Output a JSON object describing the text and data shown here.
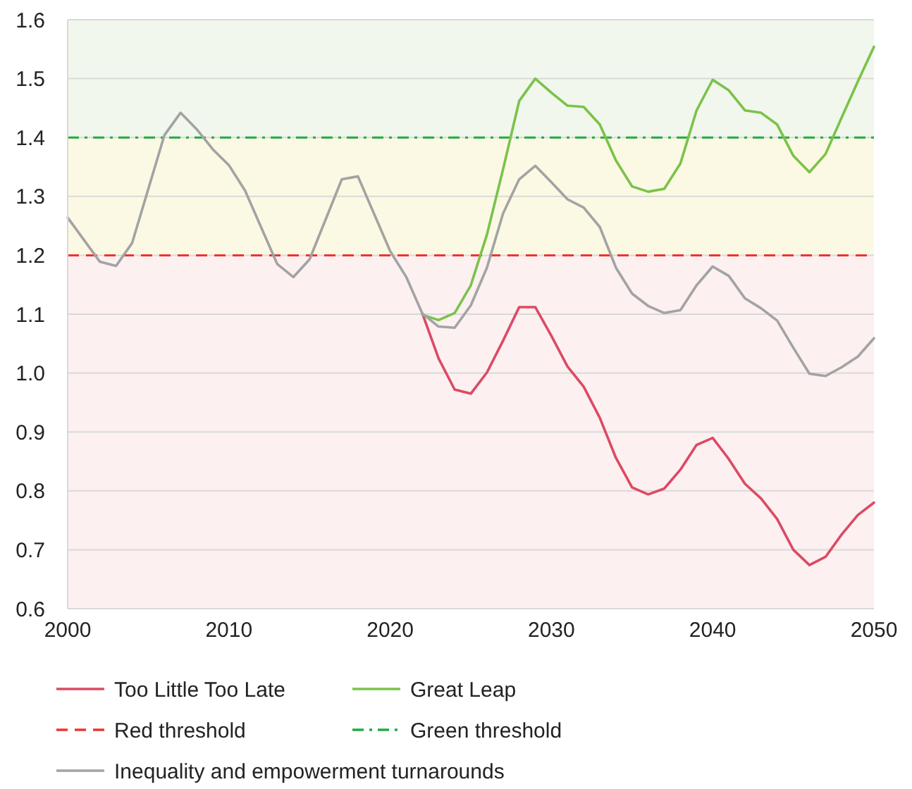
{
  "chart_data": {
    "type": "line",
    "xlim": [
      2000,
      2050
    ],
    "xticks": [
      2000,
      2010,
      2020,
      2030,
      2040,
      2050
    ],
    "ylim": [
      0.6,
      1.6
    ],
    "yticks": [
      0.6,
      0.7,
      0.8,
      0.9,
      {
        "value": 1,
        "label": "1.0"
      },
      1.1,
      1.2,
      1.3,
      1.4,
      1.5,
      1.6
    ],
    "grid": "y",
    "legend": "bottom",
    "line_style": "solid",
    "marker": "none",
    "series": [
      {
        "name": "Too Little Too Late",
        "color": "#dc4a64",
        "x": [
          2022,
          2023,
          2024,
          2025,
          2026,
          2027,
          2028,
          2029,
          2030,
          2031,
          2032,
          2033,
          2034,
          2035,
          2036,
          2037,
          2038,
          2039,
          2040,
          2041,
          2042,
          2043,
          2044,
          2045,
          2046,
          2047,
          2048,
          2049,
          2050
        ],
        "values": [
          1.101,
          1.025,
          0.972,
          0.965,
          1.001,
          1.055,
          1.112,
          1.112,
          1.063,
          1.011,
          0.977,
          0.924,
          0.856,
          0.806,
          0.794,
          0.804,
          0.836,
          0.878,
          0.89,
          0.854,
          0.812,
          0.787,
          0.752,
          0.7,
          0.674,
          0.688,
          0.726,
          0.759,
          0.78
        ]
      },
      {
        "name": "Great Leap",
        "color": "#7bc24a",
        "x": [
          2022,
          2023,
          2024,
          2025,
          2026,
          2027,
          2028,
          2029,
          2030,
          2031,
          2032,
          2033,
          2034,
          2035,
          2036,
          2037,
          2038,
          2039,
          2040,
          2041,
          2042,
          2043,
          2044,
          2045,
          2046,
          2047,
          2048,
          2049,
          2050
        ],
        "values": [
          1.099,
          1.09,
          1.102,
          1.149,
          1.235,
          1.346,
          1.462,
          1.5,
          1.476,
          1.454,
          1.452,
          1.422,
          1.361,
          1.317,
          1.308,
          1.313,
          1.356,
          1.446,
          1.498,
          1.48,
          1.446,
          1.442,
          1.422,
          1.369,
          1.341,
          1.372,
          1.434,
          1.495,
          1.554
        ]
      },
      {
        "name": "Inequality and empowerment turnarounds",
        "color": "#a3a3a3",
        "x": [
          2000,
          2002,
          2003,
          2004,
          2006,
          2007,
          2008,
          2009,
          2010,
          2011,
          2013,
          2014,
          2015,
          2017,
          2018,
          2020,
          2021,
          2022,
          2023,
          2024,
          2025,
          2026,
          2027,
          2028,
          2029,
          2030,
          2031,
          2032,
          2033,
          2034,
          2035,
          2036,
          2037,
          2038,
          2039,
          2040,
          2041,
          2042,
          2043,
          2044,
          2045,
          2046,
          2047,
          2048,
          2049,
          2050
        ],
        "values": [
          1.264,
          1.189,
          1.182,
          1.221,
          1.404,
          1.442,
          1.414,
          1.38,
          1.353,
          1.31,
          1.185,
          1.163,
          1.193,
          1.329,
          1.334,
          1.207,
          1.163,
          1.101,
          1.079,
          1.077,
          1.115,
          1.179,
          1.271,
          1.329,
          1.352,
          1.324,
          1.295,
          1.281,
          1.248,
          1.179,
          1.135,
          1.114,
          1.102,
          1.107,
          1.149,
          1.181,
          1.165,
          1.127,
          1.11,
          1.089,
          1.043,
          0.999,
          0.995,
          1.01,
          1.028,
          1.059
        ]
      }
    ],
    "ref_lines": [
      {
        "axis": "y",
        "value": 1.2,
        "label": "Red threshold",
        "color": "#ee3333",
        "line_style": "dashed"
      },
      {
        "axis": "y",
        "value": 1.4,
        "label": "Green threshold",
        "color": "#22aa44",
        "line_style": "dashdot"
      }
    ],
    "bands": [
      {
        "axis": "y",
        "from": 0.6,
        "to": 1.2,
        "color": "#fcf0f0"
      },
      {
        "axis": "y",
        "from": 1.2,
        "to": 1.4,
        "color": "#fbf9e3"
      },
      {
        "axis": "y",
        "from": 1.4,
        "to": 1.6,
        "color": "#f1f7ec"
      }
    ]
  }
}
